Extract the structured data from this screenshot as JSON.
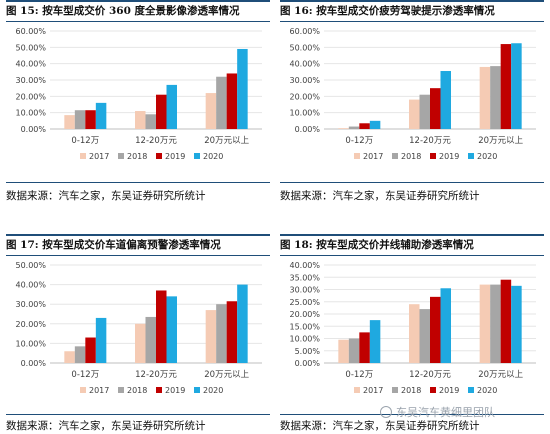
{
  "panels": [
    {
      "title": "图 15:  按车型成交价 360 度全景影像渗透率情况",
      "source": "数据来源：汽车之家，东吴证券研究所统计"
    },
    {
      "title": "图 16:  按车型成交价疲劳驾驶提示渗透率情况",
      "source": "数据来源：汽车之家，东吴证券研究所统计"
    },
    {
      "title": "图 17:  按车型成交价车道偏离预警渗透率情况",
      "source": "数据来源：汽车之家，东吴证券研究所统计"
    },
    {
      "title": "图 18:  按车型成交价并线辅助渗透率情况",
      "source": "数据来源：汽车之家，东吴证券研究所统计"
    }
  ],
  "watermark": "东吴汽车黄细里团队",
  "chart_data": [
    {
      "type": "bar",
      "categories": [
        "0-12万",
        "12-20万元",
        "20万元以上"
      ],
      "series": [
        {
          "name": "2017",
          "color": "#f5cbb4",
          "values": [
            8.5,
            11.0,
            22.0
          ]
        },
        {
          "name": "2018",
          "color": "#a6a6a6",
          "values": [
            11.5,
            9.0,
            32.0
          ]
        },
        {
          "name": "2019",
          "color": "#c00000",
          "values": [
            11.5,
            21.0,
            34.0
          ]
        },
        {
          "name": "2020",
          "color": "#1fa9e0",
          "values": [
            16.0,
            27.0,
            49.0
          ]
        }
      ],
      "yticks": [
        "0.00%",
        "10.00%",
        "20.00%",
        "30.00%",
        "40.00%",
        "50.00%",
        "60.00%"
      ],
      "ylim": [
        0,
        60
      ]
    },
    {
      "type": "bar",
      "categories": [
        "0-12万",
        "12-20万元",
        "20万元以上"
      ],
      "series": [
        {
          "name": "2017",
          "color": "#f5cbb4",
          "values": [
            0.5,
            18.0,
            38.0
          ]
        },
        {
          "name": "2018",
          "color": "#a6a6a6",
          "values": [
            1.5,
            21.0,
            38.5
          ]
        },
        {
          "name": "2019",
          "color": "#c00000",
          "values": [
            3.5,
            25.0,
            52.0
          ]
        },
        {
          "name": "2020",
          "color": "#1fa9e0",
          "values": [
            5.0,
            35.5,
            52.5
          ]
        }
      ],
      "yticks": [
        "0.00%",
        "10.00%",
        "20.00%",
        "30.00%",
        "40.00%",
        "50.00%",
        "60.00%"
      ],
      "ylim": [
        0,
        60
      ]
    },
    {
      "type": "bar",
      "categories": [
        "0-12万",
        "12-20万元",
        "20万元以上"
      ],
      "series": [
        {
          "name": "2017",
          "color": "#f5cbb4",
          "values": [
            6.0,
            20.0,
            27.0
          ]
        },
        {
          "name": "2018",
          "color": "#a6a6a6",
          "values": [
            8.5,
            23.5,
            30.0
          ]
        },
        {
          "name": "2019",
          "color": "#c00000",
          "values": [
            13.0,
            37.0,
            31.5
          ]
        },
        {
          "name": "2020",
          "color": "#1fa9e0",
          "values": [
            23.0,
            34.0,
            40.0
          ]
        }
      ],
      "yticks": [
        "0.00%",
        "10.00%",
        "20.00%",
        "30.00%",
        "40.00%",
        "50.00%"
      ],
      "ylim": [
        0,
        50
      ]
    },
    {
      "type": "bar",
      "categories": [
        "0-12万",
        "12-20万元",
        "20万元以上"
      ],
      "series": [
        {
          "name": "2017",
          "color": "#f5cbb4",
          "values": [
            9.5,
            24.0,
            32.0
          ]
        },
        {
          "name": "2018",
          "color": "#a6a6a6",
          "values": [
            10.0,
            22.0,
            32.0
          ]
        },
        {
          "name": "2019",
          "color": "#c00000",
          "values": [
            12.5,
            27.0,
            34.0
          ]
        },
        {
          "name": "2020",
          "color": "#1fa9e0",
          "values": [
            17.5,
            30.5,
            31.5
          ]
        }
      ],
      "yticks": [
        "0.00%",
        "5.00%",
        "10.00%",
        "15.00%",
        "20.00%",
        "25.00%",
        "30.00%",
        "35.00%",
        "40.00%"
      ],
      "ylim": [
        0,
        40
      ]
    }
  ]
}
